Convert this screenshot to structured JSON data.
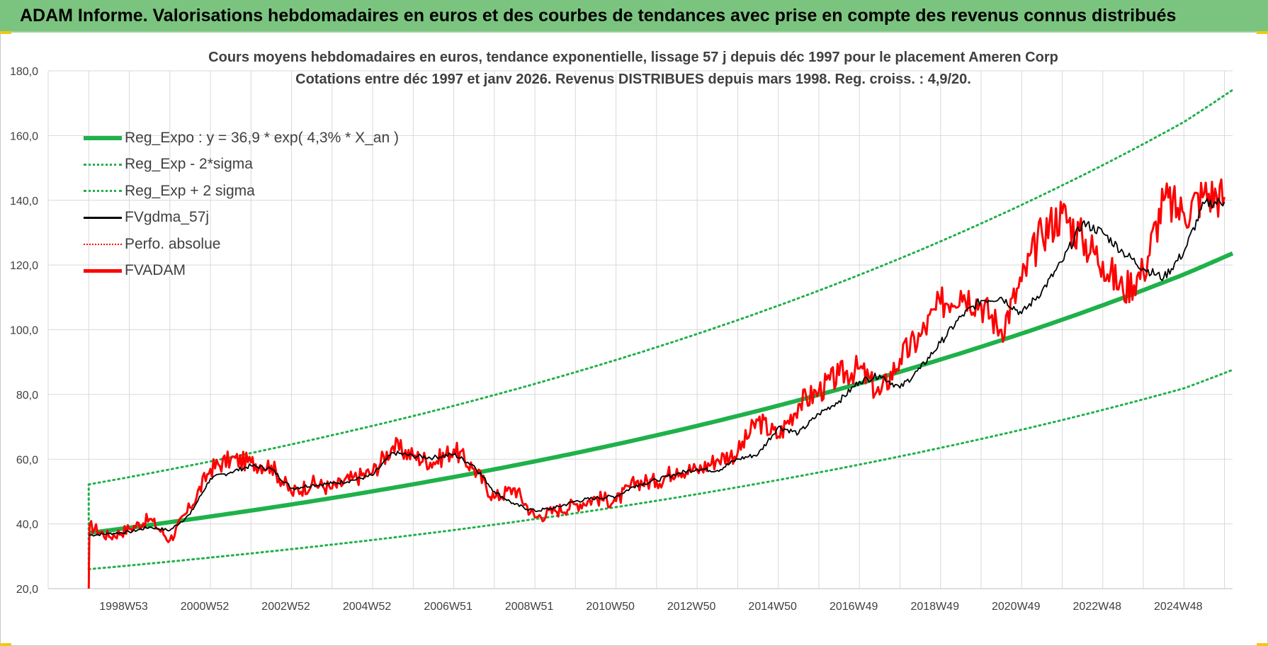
{
  "banner": {
    "title": "ADAM Informe. Valorisations hebdomadaires en euros et des courbes de tendances avec prise en compte des revenus connus distribués"
  },
  "colors": {
    "banner_bg": "#7bc47f",
    "trend_green": "#1fb14a",
    "fv_black": "#000000",
    "fvadam_red": "#ff0000",
    "grid": "#d9d9d9"
  },
  "chart_data": {
    "type": "line",
    "title_line1": "Cours moyens hebdomadaires en euros, tendance exponentielle, lissage 57 j depuis déc 1997 pour le placement Ameren Corp",
    "title_line2": "Cotations entre déc 1997 et janv 2026. Revenus DISTRIBUES depuis mars 1998. Reg. croiss. : 4,9/20.",
    "xlabel": "",
    "ylabel": "",
    "ylim": [
      20,
      180
    ],
    "yticks": [
      "20,0",
      "40,0",
      "60,0",
      "80,0",
      "100,0",
      "120,0",
      "140,0",
      "160,0",
      "180,0"
    ],
    "ytick_values": [
      20,
      40,
      60,
      80,
      100,
      120,
      140,
      160,
      180
    ],
    "xlim": [
      1997.0,
      2026.2
    ],
    "xticks": [
      {
        "label": "1998W53",
        "year": 1999.0
      },
      {
        "label": "2000W52",
        "year": 2001.0
      },
      {
        "label": "2002W52",
        "year": 2003.0
      },
      {
        "label": "2004W52",
        "year": 2005.0
      },
      {
        "label": "2006W51",
        "year": 2007.0
      },
      {
        "label": "2008W51",
        "year": 2009.0
      },
      {
        "label": "2010W50",
        "year": 2011.0
      },
      {
        "label": "2012W50",
        "year": 2013.0
      },
      {
        "label": "2014W50",
        "year": 2015.0
      },
      {
        "label": "2016W49",
        "year": 2017.0
      },
      {
        "label": "2018W49",
        "year": 2019.0
      },
      {
        "label": "2020W49",
        "year": 2021.0
      },
      {
        "label": "2022W48",
        "year": 2023.0
      },
      {
        "label": "2024W48",
        "year": 2025.0
      }
    ],
    "grid": true,
    "legend_position": "top-left",
    "legend": [
      {
        "label": "Reg_Expo : y = 36,9 * exp( 4,3% *  X_an )",
        "style": "solid-green"
      },
      {
        "label": "Reg_Exp - 2*sigma",
        "style": "dot-green"
      },
      {
        "label": "Reg_Exp + 2 sigma",
        "style": "dot-green"
      },
      {
        "label": "FVgdma_57j",
        "style": "solid-black"
      },
      {
        "label": "Perfo. absolue",
        "style": "dot-red"
      },
      {
        "label": "FVADAM",
        "style": "solid-red"
      }
    ],
    "series": [
      {
        "name": "Reg_Expo : y = 36,9 * exp( 4,3% *  X_an )",
        "x": [
          1998.0,
          2001.0,
          2004.0,
          2007.0,
          2010.0,
          2013.0,
          2016.0,
          2019.0,
          2022.0,
          2025.0,
          2026.2
        ],
        "y": [
          37.2,
          42.3,
          48.0,
          54.5,
          61.9,
          70.3,
          79.9,
          90.8,
          103.1,
          117.1,
          123.6
        ]
      },
      {
        "name": "Reg_Exp - 2*sigma",
        "x": [
          1998.0,
          2001.0,
          2004.0,
          2007.0,
          2010.0,
          2013.0,
          2016.0,
          2019.0,
          2022.0,
          2025.0,
          2026.2
        ],
        "y": [
          26.0,
          29.6,
          33.6,
          38.1,
          43.3,
          49.2,
          55.9,
          63.5,
          72.1,
          81.9,
          87.6
        ]
      },
      {
        "name": "Reg_Exp + 2 sigma",
        "x": [
          1998.0,
          2001.0,
          2004.0,
          2007.0,
          2010.0,
          2013.0,
          2016.0,
          2019.0,
          2022.0,
          2025.0,
          2026.2
        ],
        "y": [
          52.2,
          59.3,
          67.4,
          76.5,
          86.9,
          98.7,
          112.1,
          127.3,
          144.6,
          164.2,
          174.1
        ]
      },
      {
        "name": "FVgdma_57j",
        "x": [
          1998.0,
          1998.5,
          1999.0,
          1999.5,
          2000.0,
          2000.5,
          2001.0,
          2001.5,
          2002.0,
          2002.5,
          2003.0,
          2003.5,
          2004.0,
          2004.5,
          2005.0,
          2005.5,
          2006.0,
          2006.5,
          2007.0,
          2007.5,
          2008.0,
          2008.5,
          2009.0,
          2009.5,
          2010.0,
          2010.5,
          2011.0,
          2011.5,
          2012.0,
          2012.5,
          2013.0,
          2013.5,
          2014.0,
          2014.5,
          2015.0,
          2015.5,
          2016.0,
          2016.5,
          2017.0,
          2017.5,
          2018.0,
          2018.5,
          2019.0,
          2019.5,
          2020.0,
          2020.5,
          2021.0,
          2021.5,
          2022.0,
          2022.5,
          2023.0,
          2023.5,
          2024.0,
          2024.5,
          2025.0,
          2025.5,
          2026.0
        ],
        "y": [
          36.5,
          37.0,
          37.5,
          39.0,
          38.0,
          43.0,
          54.0,
          56.0,
          58.0,
          57.0,
          51.0,
          52.0,
          52.5,
          53.5,
          55.0,
          62.0,
          61.0,
          60.5,
          61.5,
          58.0,
          50.0,
          46.0,
          44.0,
          45.0,
          47.0,
          48.0,
          48.5,
          52.0,
          53.5,
          55.5,
          57.0,
          56.5,
          60.0,
          61.5,
          70.0,
          68.0,
          74.0,
          78.0,
          84.0,
          86.0,
          82.0,
          88.0,
          96.0,
          104.0,
          109.0,
          110.0,
          105.0,
          112.0,
          121.0,
          133.0,
          130.0,
          124.0,
          119.0,
          116.0,
          124.0,
          139.0,
          139.5
        ]
      },
      {
        "name": "FVADAM",
        "x": [
          1998.0,
          1998.02,
          1998.5,
          1999.0,
          1999.5,
          2000.0,
          2000.5,
          2001.0,
          2001.5,
          2002.0,
          2002.5,
          2003.0,
          2003.5,
          2004.0,
          2004.5,
          2005.0,
          2005.5,
          2006.0,
          2006.5,
          2007.0,
          2007.5,
          2008.0,
          2008.5,
          2009.0,
          2009.5,
          2010.0,
          2010.5,
          2011.0,
          2011.5,
          2012.0,
          2012.5,
          2013.0,
          2013.5,
          2014.0,
          2014.5,
          2015.0,
          2015.5,
          2016.0,
          2016.5,
          2017.0,
          2017.5,
          2018.0,
          2018.5,
          2019.0,
          2019.5,
          2020.0,
          2020.5,
          2021.0,
          2021.5,
          2022.0,
          2022.5,
          2023.0,
          2023.5,
          2024.0,
          2024.5,
          2025.0,
          2025.5,
          2026.0
        ],
        "y": [
          20.0,
          39.5,
          36.0,
          38.5,
          41.5,
          35.0,
          45.0,
          57.0,
          60.0,
          59.0,
          58.0,
          49.5,
          52.5,
          51.0,
          54.0,
          56.0,
          64.0,
          61.0,
          59.0,
          63.0,
          57.0,
          48.0,
          51.0,
          42.0,
          44.0,
          46.0,
          48.0,
          47.0,
          53.0,
          53.0,
          57.0,
          56.5,
          60.0,
          62.0,
          72.0,
          67.0,
          77.0,
          81.0,
          86.0,
          88.0,
          80.0,
          91.0,
          98.0,
          108.0,
          112.0,
          108.0,
          100.0,
          115.0,
          130.0,
          136.0,
          128.0,
          121.0,
          112.0,
          118.0,
          140.0,
          136.0,
          142.0,
          141.0
        ]
      }
    ]
  }
}
